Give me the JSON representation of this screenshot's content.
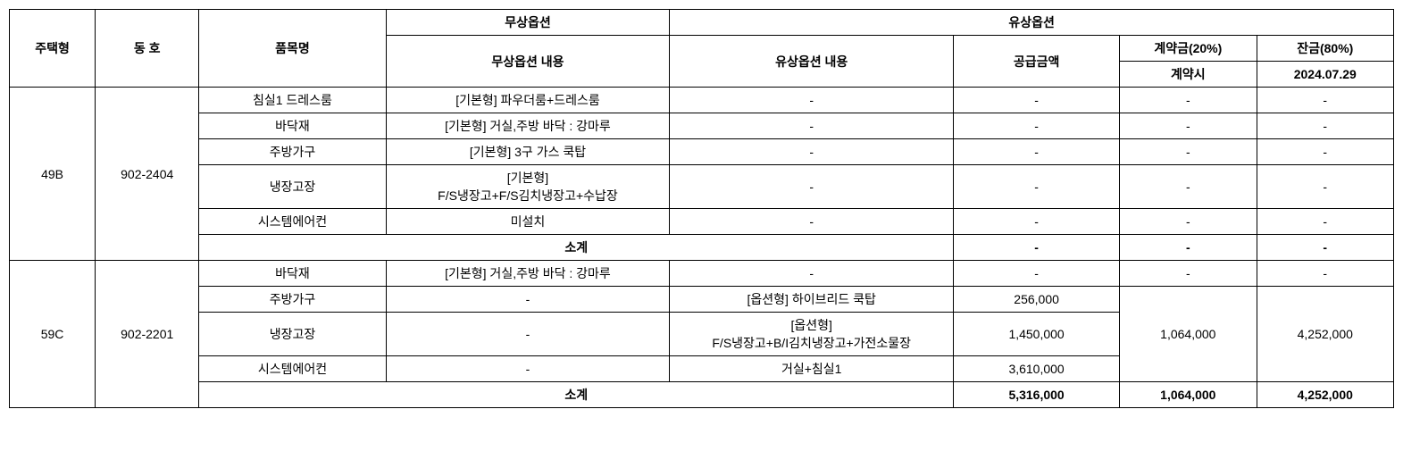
{
  "headers": {
    "housing_type": "주택형",
    "dong_ho": "동 호",
    "item_name": "품목명",
    "free_option": "무상옵션",
    "free_option_content": "무상옵션 내용",
    "paid_option": "유상옵션",
    "paid_option_content": "유상옵션 내용",
    "supply_amount": "공급금액",
    "contract_amount_20": "계약금(20%)",
    "balance_80": "잔금(80%)",
    "at_contract": "계약시",
    "balance_date": "2024.07.29"
  },
  "subtotal_label": "소계",
  "dash": "-",
  "groups": [
    {
      "housing_type": "49B",
      "dong_ho": "902-2404",
      "rows": [
        {
          "item": "침실1 드레스룸",
          "free": "[기본형] 파우더룸+드레스룸",
          "paid": "-",
          "supply": "-",
          "contract": "-",
          "balance": "-"
        },
        {
          "item": "바닥재",
          "free": "[기본형] 거실,주방 바닥 : 강마루",
          "paid": "-",
          "supply": "-",
          "contract": "-",
          "balance": "-"
        },
        {
          "item": "주방가구",
          "free": "[기본형] 3구 가스 쿡탑",
          "paid": "-",
          "supply": "-",
          "contract": "-",
          "balance": "-"
        },
        {
          "item": "냉장고장",
          "free": "[기본형]\nF/S냉장고+F/S김치냉장고+수납장",
          "paid": "-",
          "supply": "-",
          "contract": "-",
          "balance": "-"
        },
        {
          "item": "시스템에어컨",
          "free": "미설치",
          "paid": "-",
          "supply": "-",
          "contract": "-",
          "balance": "-"
        }
      ],
      "subtotal": {
        "supply": "-",
        "contract": "-",
        "balance": "-"
      }
    },
    {
      "housing_type": "59C",
      "dong_ho": "902-2201",
      "rows": [
        {
          "item": "바닥재",
          "free": "[기본형] 거실,주방 바닥 : 강마루",
          "paid": "-",
          "supply": "-",
          "contract": "-",
          "balance": "-"
        },
        {
          "item": "주방가구",
          "free": "-",
          "paid": "[옵션형] 하이브리드 쿡탑",
          "supply": "256,000",
          "merged_contract": true,
          "merged_balance": true
        },
        {
          "item": "냉장고장",
          "free": "-",
          "paid": "[옵션형]\nF/S냉장고+B/I김치냉장고+가전소물장",
          "supply": "1,450,000",
          "merged_contract": true,
          "merged_balance": true
        },
        {
          "item": "시스템에어컨",
          "free": "-",
          "paid": "거실+침실1",
          "supply": "3,610,000",
          "merged_contract": true,
          "merged_balance": true
        }
      ],
      "merged_values": {
        "contract": "1,064,000",
        "balance": "4,252,000",
        "merge_rowspan": 3,
        "merge_start_index": 1
      },
      "subtotal": {
        "supply": "5,316,000",
        "contract": "1,064,000",
        "balance": "4,252,000"
      }
    }
  ],
  "styling": {
    "border_color": "#000000",
    "background_color": "#ffffff",
    "text_color": "#000000",
    "font_size_header": 14,
    "font_size_body": 14
  }
}
